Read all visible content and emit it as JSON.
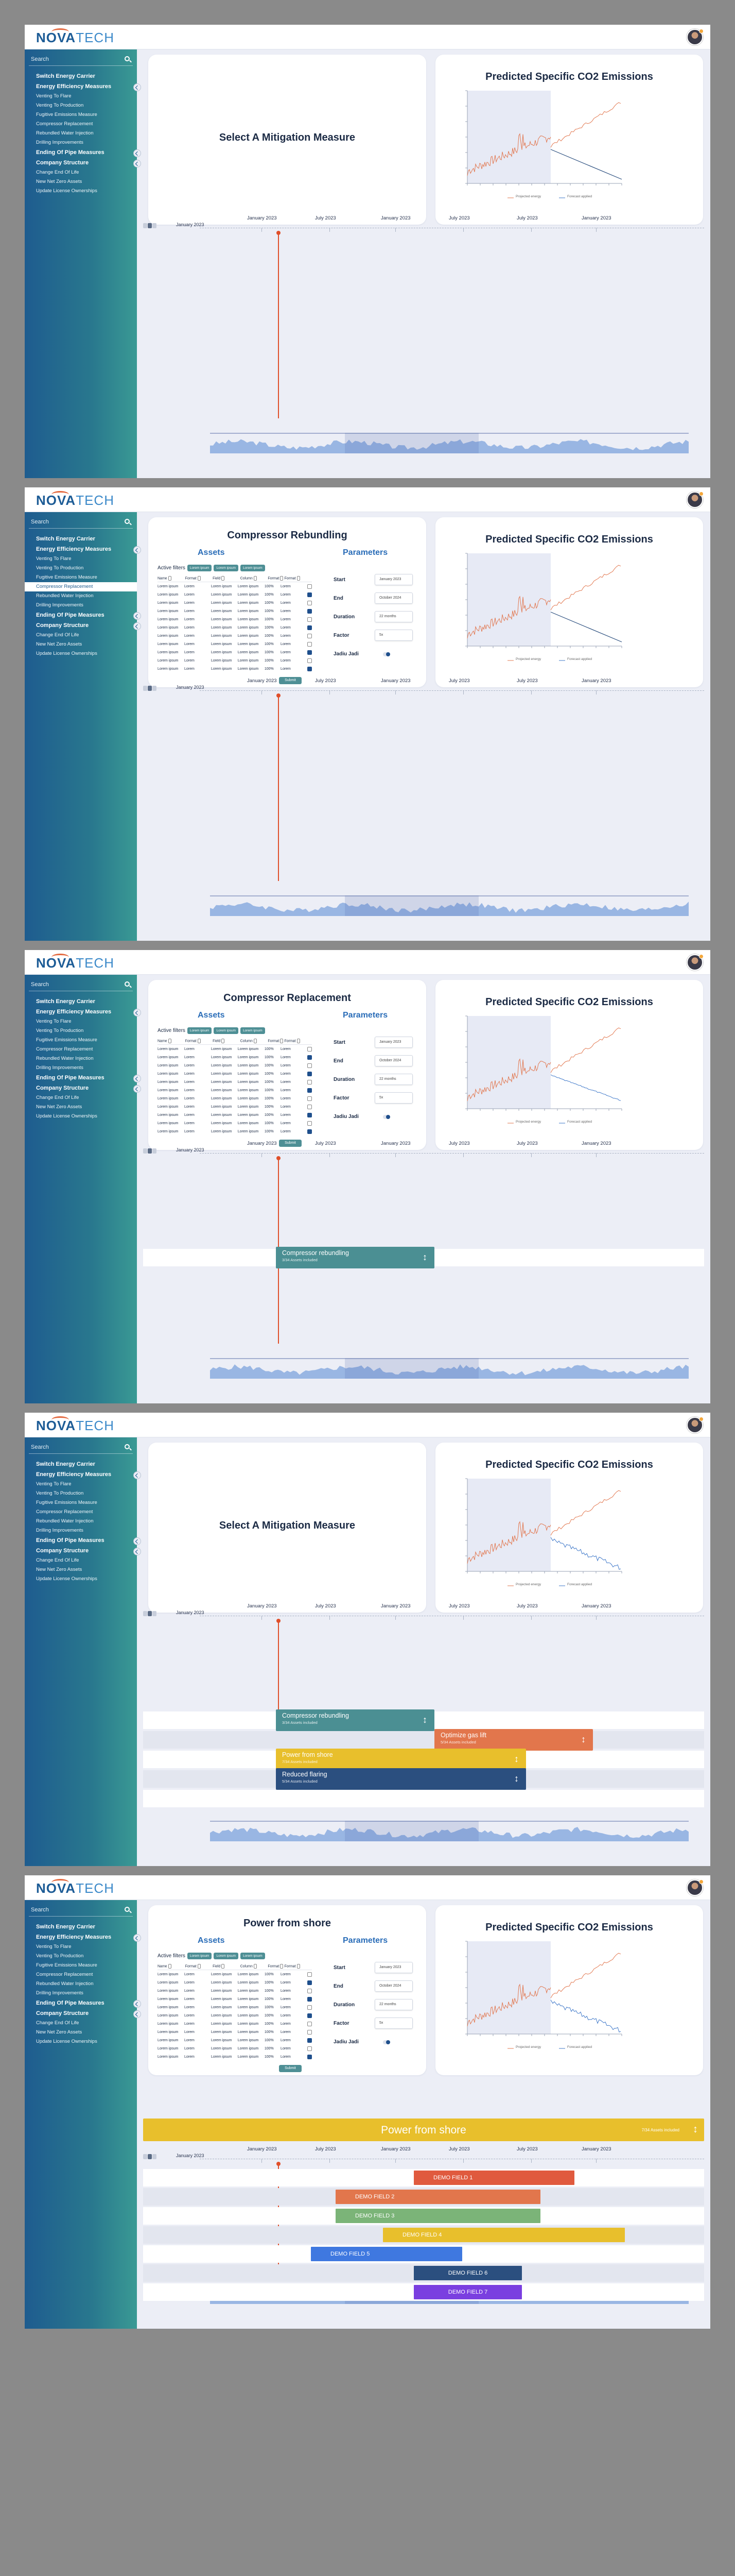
{
  "app": {
    "logo_main": "NOVA",
    "logo_accent": "TECH"
  },
  "sidebar": {
    "search_placeholder": "Search",
    "items": [
      {
        "label": "Switch Energy Carrier",
        "type": "header"
      },
      {
        "label": "Energy Efficiency Measures",
        "type": "header"
      },
      {
        "label": "Venting To Flare",
        "type": "item"
      },
      {
        "label": "Venting To Production",
        "type": "item"
      },
      {
        "label": "Fugitive Emissions Measure",
        "type": "item"
      },
      {
        "label": "Compressor Replacement",
        "type": "item"
      },
      {
        "label": "Rebundled Water Injection",
        "type": "item"
      },
      {
        "label": "Drilling Improvements",
        "type": "item"
      },
      {
        "label": "Ending Of Pipe Measures",
        "type": "header"
      },
      {
        "label": "Company Structure",
        "type": "header"
      },
      {
        "label": "Change End Of Life",
        "type": "item"
      },
      {
        "label": "New Net Zero Assets",
        "type": "item"
      },
      {
        "label": "Update License Ownerships",
        "type": "item"
      }
    ]
  },
  "co2_card": {
    "title": "Predicted Specific CO2 Emissions",
    "legend": [
      "Projected energy",
      "Forecast applied"
    ]
  },
  "select_card": {
    "title": "Select A Mitigation Measure"
  },
  "timeline": {
    "start_label": "January 2023",
    "labels": [
      "January 2023",
      "July 2023",
      "January 2023",
      "July 2023",
      "July 2023",
      "January 2023"
    ]
  },
  "form": {
    "assets_label": "Assets",
    "parameters_label": "Parameters",
    "active_filters_label": "Active filters",
    "filter_chips": [
      "Lorem ipsum",
      "Lorem ipsum",
      "Lorem ipsum"
    ],
    "columns": [
      "Name",
      "Format",
      "Field",
      "Column",
      "Format",
      "Format"
    ],
    "row": [
      "Lorem ipsum",
      "Lorem",
      "Lorem ipsum",
      "Lorem ipsum",
      "100%",
      "Lorem"
    ],
    "submit_label": "Submit",
    "params": [
      {
        "label": "Start",
        "value": "January 2023"
      },
      {
        "label": "End",
        "value": "October 2024"
      },
      {
        "label": "Duration",
        "value": "22 months"
      },
      {
        "label": "Factor",
        "value": "5x"
      },
      {
        "label": "Jadiu Jadi",
        "value": ""
      }
    ]
  },
  "screens": [
    {
      "panel": "select",
      "panel_title": ""
    },
    {
      "panel": "form",
      "panel_title": "Compressor Rebundling"
    },
    {
      "panel": "form",
      "panel_title": "Compressor Replacement"
    },
    {
      "panel": "select",
      "panel_title": ""
    },
    {
      "panel": "form",
      "panel_title": "Power from shore"
    }
  ],
  "measures": {
    "compressor": {
      "title": "Compressor rebundling",
      "sub": "3/34 Assets included",
      "color": "#4b8f93"
    },
    "gaslift": {
      "title": "Optimize gas lift",
      "sub": "5/34 Assets included",
      "color": "#e2764c"
    },
    "shore": {
      "title": "Power from shore",
      "sub": "7/34 Assets included",
      "color": "#e8bf2c"
    },
    "flaring": {
      "title": "Reduced flaring",
      "sub": "5/34 Assets included",
      "color": "#2b4f7f"
    }
  },
  "banner": {
    "title": "Power from shore",
    "sub": "7/34 Assets included"
  },
  "demo_fields": [
    {
      "label": "DEMO FIELD 1",
      "color": "#e05a3e"
    },
    {
      "label": "DEMO FIELD 2",
      "color": "#e2764c"
    },
    {
      "label": "DEMO FIELD 3",
      "color": "#7bb478"
    },
    {
      "label": "DEMO FIELD 4",
      "color": "#e8bf2c"
    },
    {
      "label": "DEMO FIELD 5",
      "color": "#3f78e0"
    },
    {
      "label": "DEMO FIELD 6",
      "color": "#2b4f7f"
    },
    {
      "label": "DEMO FIELD 7",
      "color": "#7a3fe0"
    }
  ]
}
